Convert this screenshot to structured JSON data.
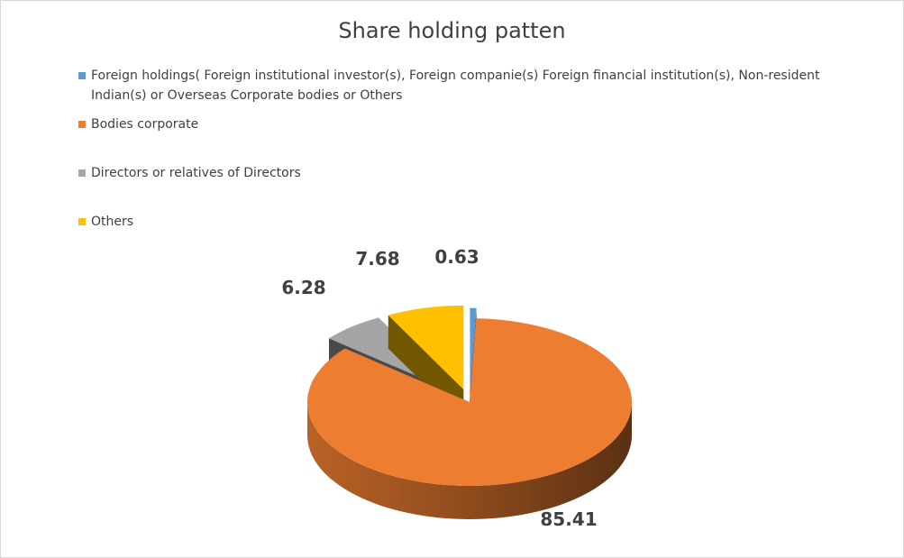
{
  "chart_data": {
    "type": "pie",
    "title": "Share holding patten",
    "legend_position": "top",
    "series": [
      {
        "label": "Foreign holdings(  Foreign institutional investor(s), Foreign companie(s) Foreign financial institution(s), Non-resident Indian(s) or Overseas Corporate bodies or Others",
        "value": 0.63,
        "value_label": "0.63",
        "color": "#5b9bd5"
      },
      {
        "label": "Bodies corporate",
        "value": 85.41,
        "value_label": "85.41",
        "color": "#ed7d31"
      },
      {
        "label": "Directors or relatives of Directors",
        "value": 6.28,
        "value_label": "6.28",
        "color": "#a5a5a5"
      },
      {
        "label": "Others",
        "value": 7.68,
        "value_label": "7.68",
        "color": "#ffc000"
      }
    ]
  }
}
